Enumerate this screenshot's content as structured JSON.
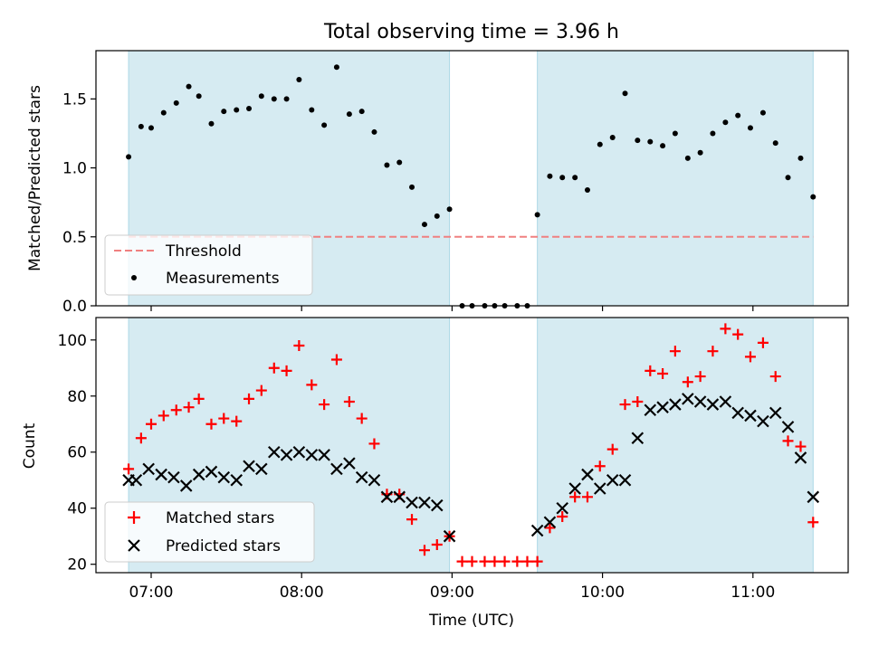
{
  "title": "Total observing time = 3.96 h",
  "colors": {
    "band": "#add8e6",
    "threshold": "#f08080",
    "measurements": "#000000",
    "matched": "#ff0000",
    "predicted": "#000000"
  },
  "chart_data": [
    {
      "type": "scatter",
      "title": "Total observing time = 3.96 h",
      "ylabel": "Matched/Predicted stars",
      "xlabel": "",
      "xlim": [
        6.633,
        11.633
      ],
      "ylim": [
        0.0,
        1.85
      ],
      "yticks": [
        0.0,
        0.5,
        1.0,
        1.5
      ],
      "ytick_labels": [
        "0.0",
        "0.5",
        "1.0",
        "1.5"
      ],
      "xticks": [
        7,
        8,
        9,
        10,
        11
      ],
      "grid": false,
      "legend_position": "lower-left",
      "observing_windows": [
        [
          6.85,
          8.983
        ],
        [
          9.567,
          11.4
        ]
      ],
      "threshold": {
        "name": "Threshold",
        "value": 0.5
      },
      "series": [
        {
          "name": "Measurements",
          "x": [
            6.85,
            6.933,
            7.0,
            7.083,
            7.167,
            7.25,
            7.317,
            7.4,
            7.483,
            7.567,
            7.65,
            7.733,
            7.817,
            7.9,
            7.983,
            8.067,
            8.15,
            8.233,
            8.317,
            8.4,
            8.483,
            8.567,
            8.65,
            8.733,
            8.817,
            8.9,
            8.983,
            9.067,
            9.133,
            9.217,
            9.283,
            9.35,
            9.433,
            9.5,
            9.567,
            9.65,
            9.733,
            9.817,
            9.9,
            9.983,
            10.067,
            10.15,
            10.233,
            10.317,
            10.4,
            10.483,
            10.567,
            10.65,
            10.733,
            10.817,
            10.9,
            10.983,
            11.067,
            11.15,
            11.233,
            11.317,
            11.4
          ],
          "y": [
            1.08,
            1.3,
            1.29,
            1.4,
            1.47,
            1.59,
            1.52,
            1.32,
            1.41,
            1.42,
            1.43,
            1.52,
            1.5,
            1.5,
            1.64,
            1.42,
            1.31,
            1.73,
            1.39,
            1.41,
            1.26,
            1.02,
            1.04,
            0.86,
            0.59,
            0.65,
            0.7,
            0.0,
            0.0,
            0.0,
            0.0,
            0.0,
            0.0,
            0.0,
            0.66,
            0.94,
            0.93,
            0.93,
            0.84,
            1.17,
            1.22,
            1.54,
            1.2,
            1.19,
            1.16,
            1.25,
            1.07,
            1.11,
            1.25,
            1.33,
            1.38,
            1.29,
            1.4,
            1.18,
            0.93,
            1.07,
            0.79
          ]
        }
      ]
    },
    {
      "type": "scatter",
      "title": "",
      "ylabel": "Count",
      "xlabel": "Time (UTC)",
      "xlim": [
        6.633,
        11.633
      ],
      "ylim": [
        17,
        108
      ],
      "yticks": [
        20,
        40,
        60,
        80,
        100
      ],
      "ytick_labels": [
        "20",
        "40",
        "60",
        "80",
        "100"
      ],
      "xticks": [
        7,
        8,
        9,
        10,
        11
      ],
      "xtick_labels": [
        "07:00",
        "08:00",
        "09:00",
        "10:00",
        "11:00"
      ],
      "grid": false,
      "legend_position": "lower-left",
      "observing_windows": [
        [
          6.85,
          8.983
        ],
        [
          9.567,
          11.4
        ]
      ],
      "series": [
        {
          "name": "Matched stars",
          "x": [
            6.85,
            6.933,
            7.0,
            7.083,
            7.167,
            7.25,
            7.317,
            7.4,
            7.483,
            7.567,
            7.65,
            7.733,
            7.817,
            7.9,
            7.983,
            8.067,
            8.15,
            8.233,
            8.317,
            8.4,
            8.483,
            8.567,
            8.65,
            8.733,
            8.817,
            8.9,
            8.983,
            9.067,
            9.133,
            9.217,
            9.283,
            9.35,
            9.433,
            9.5,
            9.567,
            9.65,
            9.733,
            9.817,
            9.9,
            9.983,
            10.067,
            10.15,
            10.233,
            10.317,
            10.4,
            10.483,
            10.567,
            10.65,
            10.733,
            10.817,
            10.9,
            10.983,
            11.067,
            11.15,
            11.233,
            11.317,
            11.4
          ],
          "y": [
            54,
            65,
            70,
            73,
            75,
            76,
            79,
            70,
            72,
            71,
            79,
            82,
            90,
            89,
            98,
            84,
            77,
            93,
            78,
            72,
            63,
            45,
            45,
            36,
            25,
            27,
            30,
            21,
            21,
            21,
            21,
            21,
            21,
            21,
            21,
            33,
            37,
            44,
            44,
            55,
            61,
            77,
            78,
            89,
            88,
            96,
            85,
            87,
            96,
            104,
            102,
            94,
            99,
            87,
            64,
            62,
            35
          ]
        },
        {
          "name": "Predicted stars",
          "x": [
            6.85,
            6.9,
            6.983,
            7.067,
            7.15,
            7.233,
            7.317,
            7.4,
            7.483,
            7.567,
            7.65,
            7.733,
            7.817,
            7.9,
            7.983,
            8.067,
            8.15,
            8.233,
            8.317,
            8.4,
            8.483,
            8.567,
            8.65,
            8.733,
            8.817,
            8.9,
            8.983,
            9.567,
            9.65,
            9.733,
            9.817,
            9.9,
            9.983,
            10.067,
            10.15,
            10.233,
            10.317,
            10.4,
            10.483,
            10.567,
            10.65,
            10.733,
            10.817,
            10.9,
            10.983,
            11.067,
            11.15,
            11.233,
            11.317,
            11.4
          ],
          "y": [
            50,
            50,
            54,
            52,
            51,
            48,
            52,
            53,
            51,
            50,
            55,
            54,
            60,
            59,
            60,
            59,
            59,
            54,
            56,
            51,
            50,
            44,
            44,
            42,
            42,
            41,
            30,
            32,
            35,
            40,
            47,
            52,
            47,
            50,
            50,
            65,
            75,
            76,
            77,
            79,
            78,
            77,
            78,
            74,
            73,
            71,
            74,
            69,
            58,
            44
          ]
        }
      ]
    }
  ]
}
